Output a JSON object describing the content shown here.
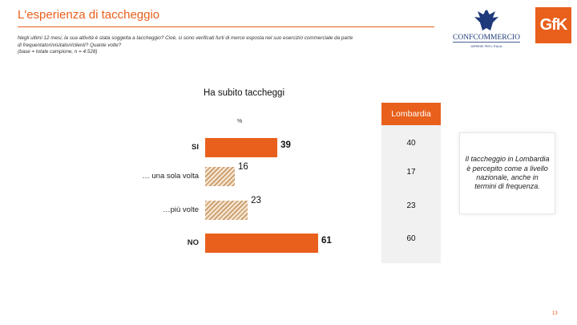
{
  "header": {
    "title": "L'esperienza di taccheggio",
    "question_lines": [
      "Negli ultimi 12 mesi, la sua attività è stata soggetta a taccheggio? Cioè, si sono verificati furti di merce esposta nel suo esercizio commerciale da parte",
      "di frequentatori/visitatori/clienti? Quante volte?",
      "(base = totale campione, n = 4.528)"
    ]
  },
  "logos": {
    "confcommercio": "CONFCOMMERCIO",
    "confcommercio_tagline": "IMPRESE PER L'ITALIA",
    "gfk": "GfK"
  },
  "chart_data": {
    "type": "bar",
    "orientation": "horizontal",
    "title": "Ha subito taccheggi",
    "unit_label": "%",
    "xlim": [
      0,
      61
    ],
    "categories": [
      "SI",
      "… una sola volta",
      "…più volte",
      "NO"
    ],
    "values": [
      39,
      16,
      23,
      61
    ],
    "styles": [
      "solid",
      "hatched",
      "hatched",
      "solid"
    ],
    "bold_labels": [
      true,
      false,
      false,
      true
    ],
    "colors": {
      "solid": "#e8601c",
      "hatch": "#c89a6a"
    },
    "comparison": {
      "label": "Lombardia",
      "values": [
        40,
        17,
        23,
        60
      ]
    }
  },
  "note": "Il taccheggio in Lombardia è percepito come a livello nazionale, anche in termini di frequenza.",
  "page_number": "13"
}
